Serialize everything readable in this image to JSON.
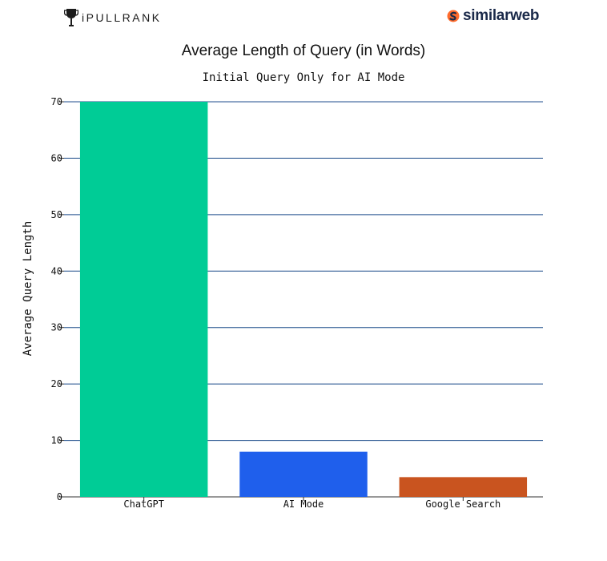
{
  "logos": {
    "left": "iPULLRANK",
    "right": "similarweb"
  },
  "colors": {
    "grid": "#1f4e8c",
    "axis": "#333333"
  },
  "chart_data": {
    "type": "bar",
    "title": "Average Length of Query (in Words)",
    "subtitle": "Initial Query Only for AI Mode",
    "ylabel": "Average Query Length",
    "xlabel": "",
    "categories": [
      "ChatGPT",
      "AI Mode",
      "Google Search"
    ],
    "values": [
      70,
      8,
      3.5
    ],
    "colors": [
      "#00cc96",
      "#1f5fec",
      "#c9541f"
    ],
    "ylim": [
      0,
      70
    ],
    "yticks": [
      0,
      10,
      20,
      30,
      40,
      50,
      60,
      70
    ],
    "grid": true,
    "legend": "none"
  }
}
